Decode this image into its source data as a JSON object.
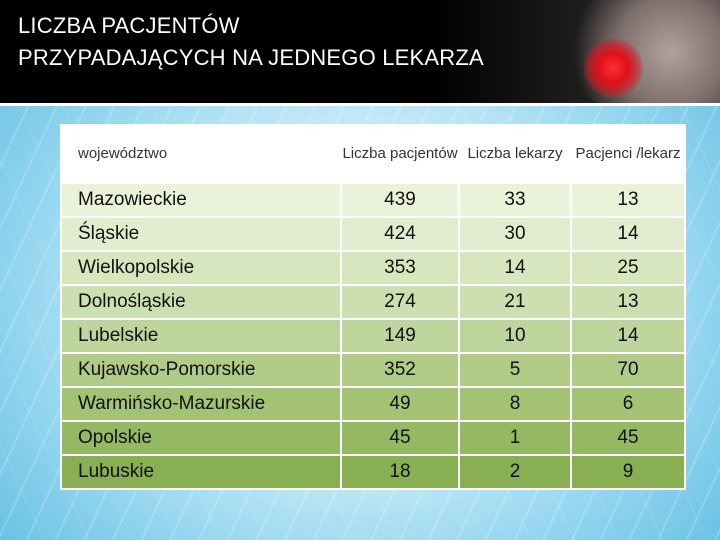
{
  "title": {
    "line1": "LICZBA PACJENTÓW",
    "line2": "PRZYPADAJĄCYCH NA JEDNEGO LEKARZA"
  },
  "table": {
    "headers": [
      "województwo",
      "Liczba pacjentów",
      "Liczba lekarzy",
      "Pacjenci /lekarz"
    ],
    "rows": [
      [
        "Mazowieckie",
        "439",
        "33",
        "13"
      ],
      [
        "Śląskie",
        "424",
        "30",
        "14"
      ],
      [
        "Wielkopolskie",
        "353",
        "14",
        "25"
      ],
      [
        "Dolnośląskie",
        "274",
        "21",
        "13"
      ],
      [
        "Lubelskie",
        "149",
        "10",
        "14"
      ],
      [
        "Kujawsko-Pomorskie",
        "352",
        "5",
        "70"
      ],
      [
        "Warmińsko-Mazurskie",
        "49",
        "8",
        "6"
      ],
      [
        "Opolskie",
        "45",
        "1",
        "45"
      ],
      [
        "Lubuskie",
        "18",
        "2",
        "9"
      ]
    ],
    "row_colors": [
      "#eaf2da",
      "#e2edcf",
      "#d7e6bf",
      "#ccdfb0",
      "#bed59d",
      "#afcb86",
      "#a3c274",
      "#95b862",
      "#89af53"
    ]
  }
}
